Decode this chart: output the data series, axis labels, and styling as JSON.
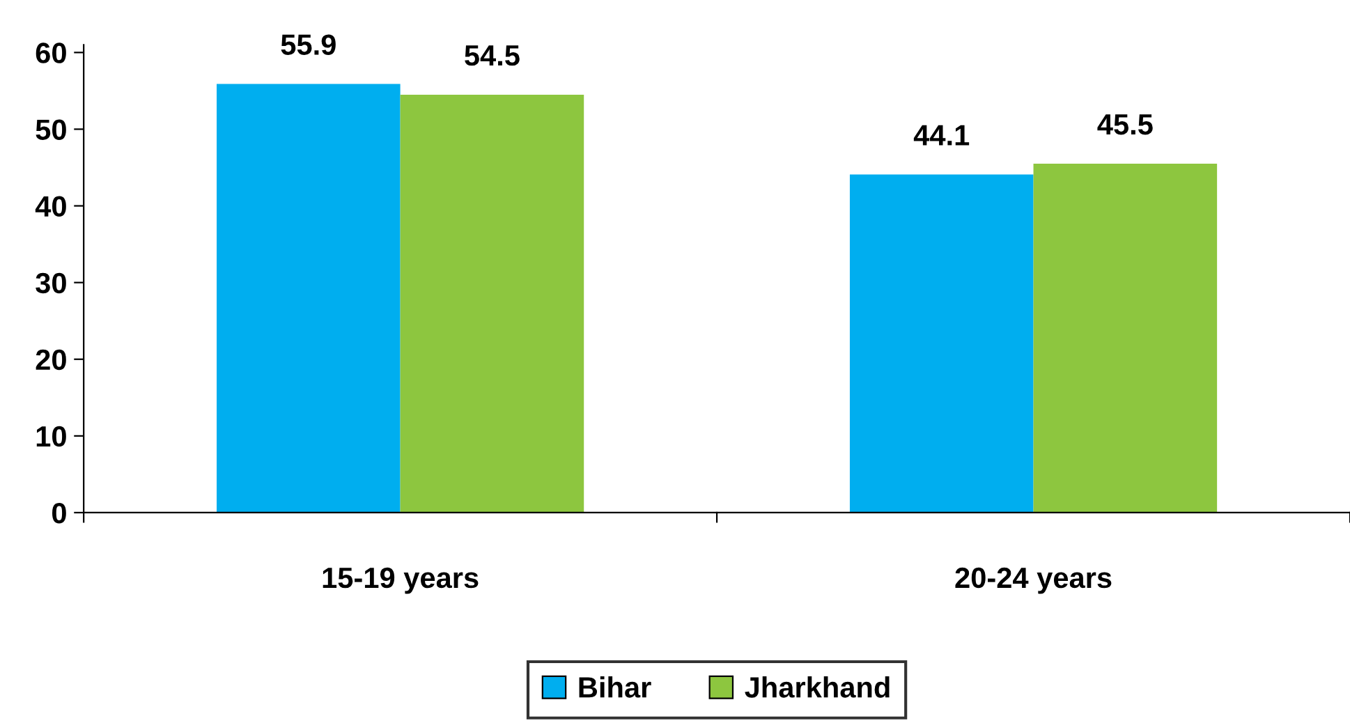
{
  "chart_data": {
    "type": "bar",
    "categories": [
      "15-19 years",
      "20-24 years"
    ],
    "series": [
      {
        "name": "Bihar",
        "color": "#00aeef",
        "values": [
          55.9,
          44.1
        ]
      },
      {
        "name": "Jharkhand",
        "color": "#8dc63f",
        "values": [
          54.5,
          45.5
        ]
      }
    ],
    "ylim": [
      0,
      61
    ],
    "yticks": [
      0,
      10,
      20,
      30,
      40,
      50,
      60
    ],
    "data_labels": true,
    "legend": "bottom",
    "grid": false
  }
}
